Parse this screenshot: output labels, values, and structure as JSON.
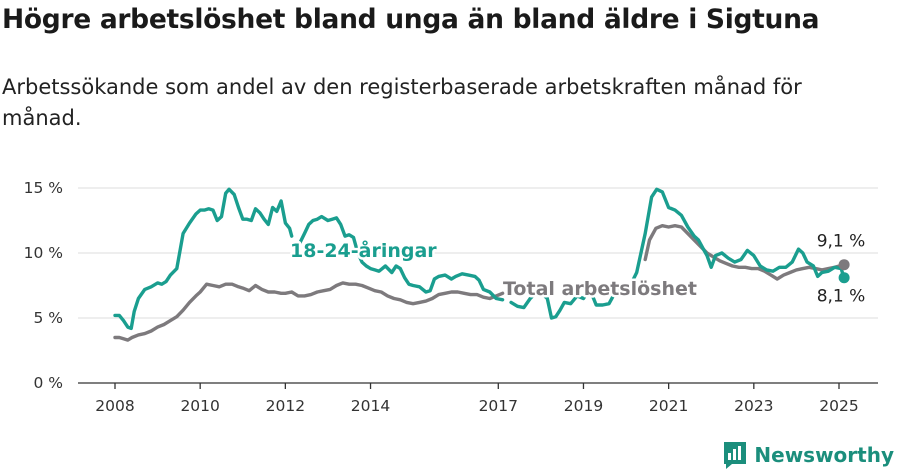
{
  "title": "Högre arbetslöshet bland unga än bland äldre i Sigtuna",
  "subtitle": "Arbetssökande som andel av den registerbaserade arbetskraften månad för månad.",
  "brand": {
    "name": "Newsworthy",
    "icon": "newsworthy-logo-icon"
  },
  "colors": {
    "youth": "#1a9e8f",
    "total": "#7d7a7d",
    "grid": "#dddddd",
    "axis": "#333333",
    "brand": "#1b8e7c"
  },
  "chart_data": {
    "type": "line",
    "title": "Högre arbetslöshet bland unga än bland äldre i Sigtuna",
    "subtitle": "Arbetssökande som andel av den registerbaserade arbetskraften månad för månad.",
    "xlabel": "",
    "ylabel": "",
    "x_unit": "year",
    "xlim": [
      2007.75,
      2026.0
    ],
    "ylim": [
      0,
      15
    ],
    "yticks": [
      0,
      5,
      10,
      15
    ],
    "ytick_labels": [
      "0 %",
      "5 %",
      "10 %",
      "15 %"
    ],
    "xticks": [
      2008,
      2010,
      2012,
      2014,
      2017,
      2019,
      2021,
      2023,
      2025
    ],
    "xtick_labels": [
      "2008",
      "2010",
      "2012",
      "2014",
      "2017",
      "2019",
      "2021",
      "2023",
      "2025"
    ],
    "grid": true,
    "legend": "inline labels",
    "series": [
      {
        "name": "18-24-åringar",
        "label": "18-24-åringar",
        "end_label": "8,1 %",
        "points": [
          [
            2008.0,
            5.2
          ],
          [
            2008.1,
            5.2
          ],
          [
            2008.2,
            4.8
          ],
          [
            2008.3,
            4.3
          ],
          [
            2008.38,
            4.2
          ],
          [
            2008.45,
            5.5
          ],
          [
            2008.55,
            6.5
          ],
          [
            2008.7,
            7.2
          ],
          [
            2008.85,
            7.4
          ],
          [
            2009.0,
            7.7
          ],
          [
            2009.1,
            7.6
          ],
          [
            2009.2,
            7.8
          ],
          [
            2009.3,
            8.3
          ],
          [
            2009.45,
            8.8
          ],
          [
            2009.6,
            11.5
          ],
          [
            2009.75,
            12.3
          ],
          [
            2009.9,
            13.0
          ],
          [
            2010.0,
            13.3
          ],
          [
            2010.1,
            13.3
          ],
          [
            2010.2,
            13.4
          ],
          [
            2010.3,
            13.3
          ],
          [
            2010.4,
            12.5
          ],
          [
            2010.5,
            12.8
          ],
          [
            2010.6,
            14.6
          ],
          [
            2010.68,
            14.9
          ],
          [
            2010.8,
            14.5
          ],
          [
            2010.9,
            13.5
          ],
          [
            2011.0,
            12.6
          ],
          [
            2011.1,
            12.6
          ],
          [
            2011.2,
            12.5
          ],
          [
            2011.3,
            13.4
          ],
          [
            2011.4,
            13.1
          ],
          [
            2011.5,
            12.6
          ],
          [
            2011.6,
            12.2
          ],
          [
            2011.7,
            13.5
          ],
          [
            2011.8,
            13.2
          ],
          [
            2011.9,
            14.0
          ],
          [
            2012.0,
            12.3
          ],
          [
            2012.1,
            11.9
          ],
          [
            2012.15,
            11.3
          ]
        ],
        "points_b": [
          [
            2012.3,
            10.5
          ],
          [
            2012.45,
            11.5
          ],
          [
            2012.55,
            12.2
          ],
          [
            2012.65,
            12.5
          ],
          [
            2012.75,
            12.6
          ],
          [
            2012.85,
            12.8
          ],
          [
            2013.0,
            12.5
          ],
          [
            2013.1,
            12.6
          ],
          [
            2013.2,
            12.7
          ],
          [
            2013.3,
            12.2
          ],
          [
            2013.4,
            11.3
          ],
          [
            2013.5,
            11.4
          ],
          [
            2013.6,
            11.2
          ],
          [
            2013.7,
            10.0
          ],
          [
            2013.8,
            9.3
          ],
          [
            2013.9,
            9.0
          ],
          [
            2014.0,
            8.8
          ],
          [
            2014.1,
            8.7
          ],
          [
            2014.2,
            8.6
          ],
          [
            2014.35,
            9.0
          ],
          [
            2014.5,
            8.5
          ],
          [
            2014.6,
            9.0
          ],
          [
            2014.7,
            8.8
          ],
          [
            2014.8,
            8.1
          ],
          [
            2014.9,
            7.6
          ],
          [
            2015.0,
            7.5
          ],
          [
            2015.15,
            7.4
          ],
          [
            2015.3,
            7.0
          ],
          [
            2015.4,
            7.1
          ],
          [
            2015.5,
            8.0
          ],
          [
            2015.6,
            8.2
          ],
          [
            2015.75,
            8.3
          ],
          [
            2015.9,
            8.0
          ],
          [
            2016.0,
            8.2
          ],
          [
            2016.15,
            8.4
          ],
          [
            2016.3,
            8.3
          ],
          [
            2016.45,
            8.2
          ],
          [
            2016.55,
            7.9
          ],
          [
            2016.65,
            7.2
          ],
          [
            2016.8,
            7.0
          ],
          [
            2016.95,
            6.5
          ],
          [
            2017.1,
            6.4
          ]
        ],
        "points_c": [
          [
            2017.3,
            6.2
          ],
          [
            2017.45,
            5.9
          ],
          [
            2017.6,
            5.8
          ],
          [
            2017.75,
            6.5
          ],
          [
            2017.9,
            7.0
          ],
          [
            2018.05,
            6.8
          ],
          [
            2018.15,
            6.5
          ],
          [
            2018.25,
            5.0
          ],
          [
            2018.35,
            5.1
          ],
          [
            2018.45,
            5.6
          ],
          [
            2018.55,
            6.2
          ],
          [
            2018.7,
            6.1
          ],
          [
            2018.85,
            6.7
          ],
          [
            2019.0,
            6.5
          ],
          [
            2019.1,
            7.0
          ],
          [
            2019.2,
            6.8
          ],
          [
            2019.3,
            6.0
          ],
          [
            2019.45,
            6.0
          ],
          [
            2019.6,
            6.1
          ],
          [
            2019.75,
            7.0
          ],
          [
            2019.9,
            7.3
          ],
          [
            2020.0,
            7.5
          ],
          [
            2020.1,
            7.5
          ],
          [
            2020.25,
            8.5
          ],
          [
            2020.45,
            11.5
          ],
          [
            2020.6,
            14.3
          ],
          [
            2020.72,
            14.9
          ],
          [
            2020.85,
            14.7
          ],
          [
            2021.0,
            13.5
          ],
          [
            2021.15,
            13.3
          ],
          [
            2021.3,
            12.9
          ],
          [
            2021.45,
            12.0
          ],
          [
            2021.6,
            11.3
          ],
          [
            2021.7,
            11.0
          ],
          [
            2021.8,
            10.4
          ],
          [
            2021.9,
            9.8
          ],
          [
            2022.0,
            8.9
          ],
          [
            2022.1,
            9.8
          ],
          [
            2022.25,
            10.0
          ],
          [
            2022.4,
            9.6
          ],
          [
            2022.55,
            9.3
          ],
          [
            2022.7,
            9.5
          ],
          [
            2022.85,
            10.2
          ],
          [
            2023.0,
            9.8
          ],
          [
            2023.15,
            9.0
          ],
          [
            2023.3,
            8.7
          ],
          [
            2023.45,
            8.6
          ],
          [
            2023.6,
            8.9
          ],
          [
            2023.75,
            8.9
          ],
          [
            2023.9,
            9.3
          ],
          [
            2024.05,
            10.3
          ],
          [
            2024.15,
            10.0
          ],
          [
            2024.25,
            9.3
          ],
          [
            2024.4,
            9.0
          ],
          [
            2024.5,
            8.2
          ],
          [
            2024.6,
            8.5
          ],
          [
            2024.75,
            8.6
          ],
          [
            2024.9,
            8.9
          ],
          [
            2025.05,
            8.8
          ],
          [
            2025.12,
            8.1
          ]
        ]
      },
      {
        "name": "Total arbetslöshet",
        "label": "Total arbetslöshet",
        "end_label": "9,1 %",
        "points": [
          [
            2008.0,
            3.5
          ],
          [
            2008.1,
            3.5
          ],
          [
            2008.2,
            3.4
          ],
          [
            2008.3,
            3.3
          ],
          [
            2008.4,
            3.5
          ],
          [
            2008.55,
            3.7
          ],
          [
            2008.7,
            3.8
          ],
          [
            2008.85,
            4.0
          ],
          [
            2009.0,
            4.3
          ],
          [
            2009.15,
            4.5
          ],
          [
            2009.3,
            4.8
          ],
          [
            2009.45,
            5.1
          ],
          [
            2009.6,
            5.6
          ],
          [
            2009.75,
            6.2
          ],
          [
            2009.9,
            6.7
          ],
          [
            2010.0,
            7.0
          ],
          [
            2010.15,
            7.6
          ],
          [
            2010.3,
            7.5
          ],
          [
            2010.45,
            7.4
          ],
          [
            2010.6,
            7.6
          ],
          [
            2010.75,
            7.6
          ],
          [
            2010.9,
            7.4
          ],
          [
            2011.0,
            7.3
          ],
          [
            2011.15,
            7.1
          ],
          [
            2011.3,
            7.5
          ],
          [
            2011.45,
            7.2
          ],
          [
            2011.6,
            7.0
          ],
          [
            2011.75,
            7.0
          ],
          [
            2011.9,
            6.9
          ],
          [
            2012.0,
            6.9
          ],
          [
            2012.15,
            7.0
          ],
          [
            2012.3,
            6.7
          ],
          [
            2012.45,
            6.7
          ],
          [
            2012.6,
            6.8
          ],
          [
            2012.75,
            7.0
          ],
          [
            2012.9,
            7.1
          ],
          [
            2013.05,
            7.2
          ],
          [
            2013.2,
            7.5
          ],
          [
            2013.35,
            7.7
          ],
          [
            2013.5,
            7.6
          ],
          [
            2013.65,
            7.6
          ],
          [
            2013.8,
            7.5
          ],
          [
            2013.95,
            7.3
          ],
          [
            2014.1,
            7.1
          ],
          [
            2014.25,
            7.0
          ],
          [
            2014.4,
            6.7
          ],
          [
            2014.55,
            6.5
          ],
          [
            2014.7,
            6.4
          ],
          [
            2014.85,
            6.2
          ],
          [
            2015.0,
            6.1
          ],
          [
            2015.15,
            6.2
          ],
          [
            2015.3,
            6.3
          ],
          [
            2015.45,
            6.5
          ],
          [
            2015.6,
            6.8
          ],
          [
            2015.75,
            6.9
          ],
          [
            2015.9,
            7.0
          ],
          [
            2016.05,
            7.0
          ],
          [
            2016.2,
            6.9
          ],
          [
            2016.35,
            6.8
          ],
          [
            2016.5,
            6.8
          ],
          [
            2016.65,
            6.6
          ],
          [
            2016.8,
            6.5
          ],
          [
            2016.95,
            6.7
          ],
          [
            2017.1,
            6.9
          ]
        ],
        "points_b": [
          [
            2020.45,
            9.5
          ],
          [
            2020.55,
            11.0
          ],
          [
            2020.7,
            11.9
          ],
          [
            2020.85,
            12.1
          ],
          [
            2021.0,
            12.0
          ],
          [
            2021.15,
            12.1
          ],
          [
            2021.3,
            12.0
          ],
          [
            2021.45,
            11.5
          ],
          [
            2021.6,
            11.0
          ],
          [
            2021.75,
            10.5
          ],
          [
            2021.9,
            10.0
          ],
          [
            2022.05,
            9.7
          ],
          [
            2022.2,
            9.4
          ],
          [
            2022.35,
            9.2
          ],
          [
            2022.5,
            9.0
          ],
          [
            2022.65,
            8.9
          ],
          [
            2022.8,
            8.9
          ],
          [
            2022.95,
            8.8
          ],
          [
            2023.1,
            8.8
          ],
          [
            2023.25,
            8.6
          ],
          [
            2023.4,
            8.3
          ],
          [
            2023.55,
            8.0
          ],
          [
            2023.7,
            8.3
          ],
          [
            2023.85,
            8.5
          ],
          [
            2024.0,
            8.7
          ],
          [
            2024.15,
            8.8
          ],
          [
            2024.3,
            8.9
          ],
          [
            2024.45,
            8.8
          ],
          [
            2024.6,
            8.7
          ],
          [
            2024.75,
            8.8
          ],
          [
            2024.9,
            8.9
          ],
          [
            2025.12,
            9.1
          ]
        ]
      }
    ]
  }
}
